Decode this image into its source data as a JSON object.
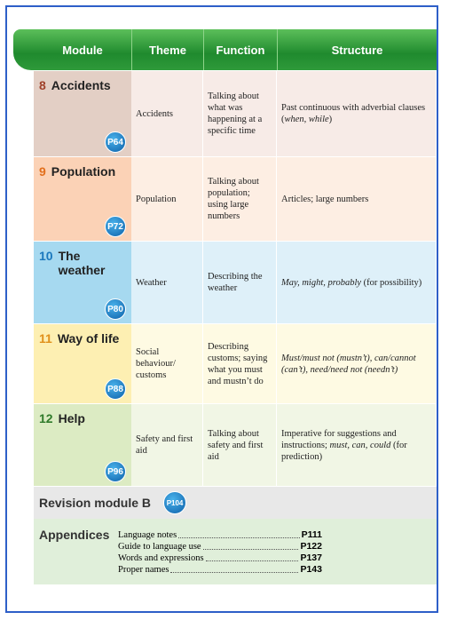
{
  "header": {
    "columns": [
      "Module",
      "Theme",
      "Function",
      "Structure"
    ]
  },
  "units": [
    {
      "number": "8",
      "title": "Accidents",
      "page": "P64",
      "theme": "Accidents",
      "function": "Talking about what was happening at a specific time",
      "structure": [
        {
          "text": "Past continuous with adverbial clauses (",
          "italic": false
        },
        {
          "text": "when",
          "italic": true
        },
        {
          "text": ", ",
          "italic": false
        },
        {
          "text": "while",
          "italic": true
        },
        {
          "text": ")",
          "italic": false
        }
      ]
    },
    {
      "number": "9",
      "title": "Population",
      "page": "P72",
      "theme": "Population",
      "function": "Talking about population; using large numbers",
      "structure": [
        {
          "text": "Articles; large numbers",
          "italic": false
        }
      ]
    },
    {
      "number": "10",
      "title": "The weather",
      "page": "P80",
      "theme": "Weather",
      "function": "Describing the weather",
      "structure": [
        {
          "text": "May, might, probably",
          "italic": true
        },
        {
          "text": " (for possibility)",
          "italic": false
        }
      ]
    },
    {
      "number": "11",
      "title": "Way of life",
      "page": "P88",
      "theme": "Social behaviour/ customs",
      "function": "Describing customs; saying what you must and mustn’t do",
      "structure": [
        {
          "text": "Must/must not (mustn’t), can/cannot (can’t), need/need not (needn’t)",
          "italic": true
        }
      ]
    },
    {
      "number": "12",
      "title": "Help",
      "page": "P96",
      "theme": "Safety and first aid",
      "function": "Talking about safety and first aid",
      "structure": [
        {
          "text": "Imperative for suggestions and instructions; ",
          "italic": false
        },
        {
          "text": "must, can, could",
          "italic": true
        },
        {
          "text": " (for prediction)",
          "italic": false
        }
      ]
    }
  ],
  "revision": {
    "title": "Revision module B",
    "page": "P104"
  },
  "appendices": {
    "title": "Appendices",
    "entries": [
      {
        "label": "Language notes",
        "page": "P111"
      },
      {
        "label": "Guide to language use",
        "page": "P122"
      },
      {
        "label": "Words and expressions",
        "page": "P137"
      },
      {
        "label": "Proper names",
        "page": "P143"
      }
    ]
  }
}
